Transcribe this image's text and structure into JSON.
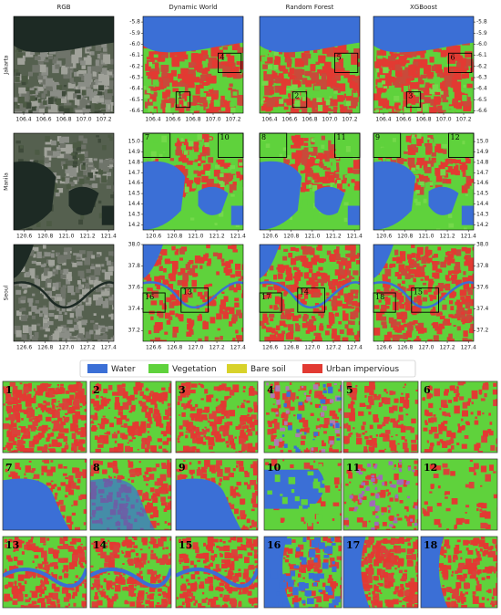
{
  "columns": [
    "RGB",
    "Dynamic World",
    "Random Forest",
    "XGBoost"
  ],
  "rows": [
    {
      "label": "Jakarta",
      "xlim": [
        106.3,
        107.3
      ],
      "ylim": [
        -5.75,
        -6.62
      ],
      "xticks": [
        106.4,
        106.6,
        106.8,
        {
          "value": 107.0,
          "label": "107.0"
        },
        107.2
      ],
      "yticks": [
        -5.8,
        -5.9,
        {
          "value": -6.0,
          "label": "-6.0"
        },
        -6.1,
        -6.2,
        -6.3,
        -6.4,
        -6.5,
        -6.6
      ],
      "boxes": [
        [
          "1",
          "4"
        ],
        [
          "2",
          "5"
        ],
        [
          "3",
          "6"
        ]
      ]
    },
    {
      "label": "Manila",
      "xlim": [
        120.5,
        121.45
      ],
      "ylim": [
        15.08,
        14.15
      ],
      "xticks": [
        120.6,
        120.8,
        {
          "value": 121.0,
          "label": "121.0"
        },
        121.2,
        121.4
      ],
      "yticks": [
        {
          "value": 15.0,
          "label": "15.0"
        },
        14.9,
        14.8,
        14.7,
        14.6,
        14.5,
        14.4,
        14.3,
        14.2
      ],
      "boxes": [
        [
          "7",
          "10"
        ],
        [
          "8",
          "11"
        ],
        [
          "9",
          "12"
        ]
      ]
    },
    {
      "label": "Seoul",
      "xlim": [
        126.5,
        127.45
      ],
      "ylim": [
        38.0,
        37.1
      ],
      "xticks": [
        126.6,
        126.8,
        {
          "value": 127.0,
          "label": "127.0"
        },
        127.2,
        127.4
      ],
      "yticks": [
        {
          "value": 38.0,
          "label": "38.0"
        },
        37.8,
        37.6,
        37.4,
        37.2
      ],
      "boxes": [
        [
          "16",
          "13"
        ],
        [
          "17",
          "14"
        ],
        [
          "18",
          "15"
        ]
      ]
    }
  ],
  "legend": [
    {
      "label": "Water",
      "color": "#3b6fd6"
    },
    {
      "label": "Vegetation",
      "color": "#5fd23c"
    },
    {
      "label": "Bare soil",
      "color": "#d8d22a"
    },
    {
      "label": "Urban impervious",
      "color": "#e23a32"
    }
  ],
  "insets": [
    "1",
    "2",
    "3",
    "4",
    "5",
    "6",
    "7",
    "8",
    "9",
    "10",
    "11",
    "12",
    "13",
    "14",
    "15",
    "16",
    "17",
    "18"
  ]
}
